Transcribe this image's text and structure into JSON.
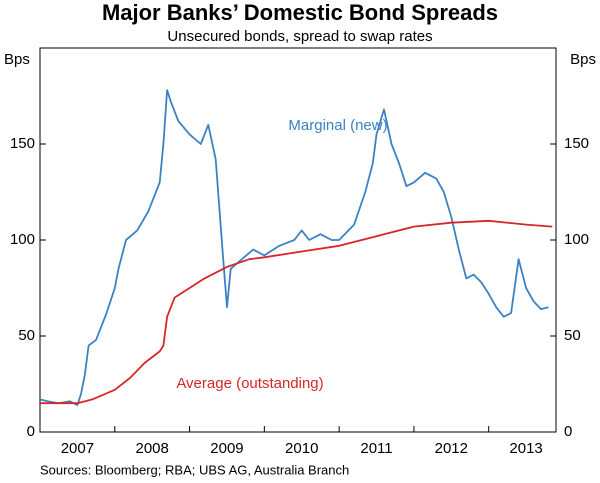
{
  "chart_data": {
    "type": "line",
    "title": "Major Banks’ Domestic Bond Spreads",
    "subtitle": "Unsecured bonds, spread to swap rates",
    "y_label": "Bps",
    "y2_label": "Bps",
    "note": "Sources: Bloomberg; RBA; UBS AG, Australia Branch",
    "xlim": [
      2007,
      2013.9
    ],
    "xticks": [
      {
        "value": 2007.5,
        "label": "2007"
      },
      {
        "value": 2008.5,
        "label": "2008"
      },
      {
        "value": 2009.5,
        "label": "2009"
      },
      {
        "value": 2010.5,
        "label": "2010"
      },
      {
        "value": 2011.5,
        "label": "2011"
      },
      {
        "value": 2012.5,
        "label": "2012"
      },
      {
        "value": 2013.5,
        "label": "2013"
      }
    ],
    "xtick_marks": [
      2008,
      2009,
      2010,
      2011,
      2012,
      2013
    ],
    "ylim": [
      0,
      200
    ],
    "yticks": [
      0,
      50,
      100,
      150
    ],
    "y2lim": [
      0,
      200
    ],
    "y2ticks": [
      0,
      50,
      100,
      150
    ],
    "series": [
      {
        "name": "Marginal (new)",
        "color": "#3b82c4",
        "x": [
          2007.0,
          2007.1,
          2007.25,
          2007.4,
          2007.5,
          2007.55,
          2007.6,
          2007.65,
          2007.75,
          2007.89,
          2008.0,
          2008.05,
          2008.15,
          2008.3,
          2008.45,
          2008.6,
          2008.65,
          2008.7,
          2008.75,
          2008.85,
          2009.0,
          2009.15,
          2009.25,
          2009.35,
          2009.45,
          2009.5,
          2009.55,
          2009.7,
          2009.85,
          2010.0,
          2010.2,
          2010.4,
          2010.5,
          2010.6,
          2010.75,
          2010.9,
          2011.0,
          2011.2,
          2011.35,
          2011.45,
          2011.5,
          2011.6,
          2011.7,
          2011.8,
          2011.9,
          2012.0,
          2012.15,
          2012.3,
          2012.4,
          2012.5,
          2012.6,
          2012.7,
          2012.8,
          2012.9,
          2013.0,
          2013.1,
          2013.2,
          2013.3,
          2013.4,
          2013.5,
          2013.6,
          2013.7,
          2013.8
        ],
        "values": [
          17,
          16,
          15,
          16,
          14,
          20,
          30,
          45,
          48,
          62,
          75,
          85,
          100,
          105,
          115,
          130,
          150,
          178,
          172,
          162,
          155,
          150,
          160,
          142,
          90,
          65,
          85,
          90,
          95,
          92,
          97,
          100,
          105,
          100,
          103,
          100,
          100,
          108,
          125,
          140,
          155,
          168,
          150,
          140,
          128,
          130,
          135,
          132,
          125,
          112,
          95,
          80,
          82,
          78,
          72,
          65,
          60,
          62,
          90,
          75,
          68,
          64,
          65
        ]
      },
      {
        "name": "Average (outstanding)",
        "color": "#d7262a",
        "x": [
          2007.0,
          2007.5,
          2007.7,
          2008.0,
          2008.2,
          2008.4,
          2008.6,
          2008.65,
          2008.7,
          2008.8,
          2009.0,
          2009.2,
          2009.5,
          2009.8,
          2010.0,
          2010.5,
          2011.0,
          2011.5,
          2012.0,
          2012.5,
          2013.0,
          2013.5,
          2013.85
        ],
        "values": [
          15,
          15,
          17,
          22,
          28,
          36,
          42,
          45,
          60,
          70,
          75,
          80,
          86,
          90,
          91,
          94,
          97,
          102,
          107,
          109,
          110,
          108,
          107
        ]
      }
    ]
  }
}
